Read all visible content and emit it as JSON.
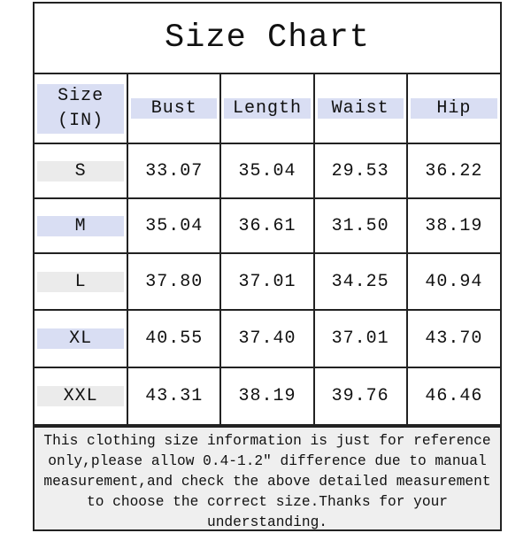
{
  "title": "Size Chart",
  "headers": [
    "Size\n(IN)",
    "Bust",
    "Length",
    "Waist",
    "Hip"
  ],
  "header_size_line1": "Size",
  "header_size_line2": "(IN)",
  "rows": [
    {
      "size": "S",
      "bust": "33.07",
      "length": "35.04",
      "waist": "29.53",
      "hip": "36.22"
    },
    {
      "size": "M",
      "bust": "35.04",
      "length": "36.61",
      "waist": "31.50",
      "hip": "38.19"
    },
    {
      "size": "L",
      "bust": "37.80",
      "length": "37.01",
      "waist": "34.25",
      "hip": "40.94"
    },
    {
      "size": "XL",
      "bust": "40.55",
      "length": "37.40",
      "waist": "37.01",
      "hip": "43.70"
    },
    {
      "size": "XXL",
      "bust": "43.31",
      "length": "38.19",
      "waist": "39.76",
      "hip": "46.46"
    }
  ],
  "note": "This clothing size information is just for reference only,please allow 0.4-1.2″ difference due to manual measurement,and check the above detailed measurement to choose the correct size.Thanks for your understanding.",
  "colors": {
    "header_bg": "#d9def3",
    "size_alt_bg": "#ebebeb",
    "footer_bg": "#efefef",
    "border": "#222222"
  }
}
